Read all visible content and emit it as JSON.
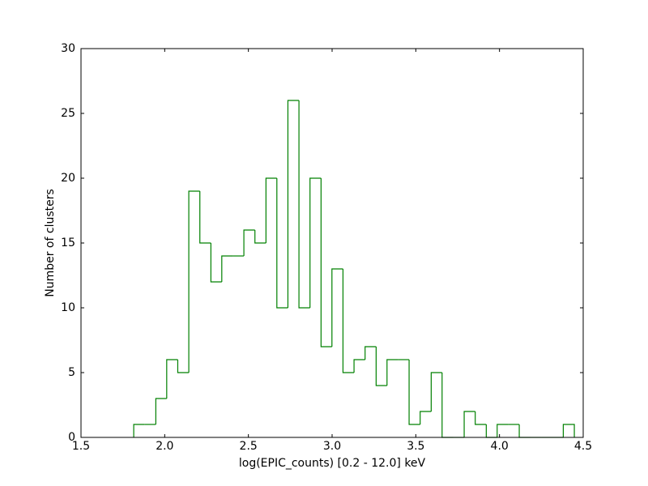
{
  "chart_data": {
    "type": "histogram",
    "xlabel": "log(EPIC_counts) [0.2 - 12.0] keV",
    "ylabel": "Number of clusters",
    "color": "#008000",
    "bins": [
      1.815,
      1.881,
      1.947,
      2.012,
      2.078,
      2.144,
      2.21,
      2.276,
      2.341,
      2.407,
      2.473,
      2.539,
      2.605,
      2.67,
      2.736,
      2.802,
      2.868,
      2.934,
      2.999,
      3.065,
      3.131,
      3.197,
      3.263,
      3.328,
      3.394,
      3.46,
      3.526,
      3.592,
      3.657,
      3.723,
      3.789,
      3.855,
      3.921,
      3.986,
      4.052,
      4.118,
      4.184,
      4.25,
      4.315,
      4.381,
      4.447
    ],
    "counts": [
      1,
      1,
      3,
      6,
      5,
      19,
      15,
      12,
      14,
      14,
      16,
      15,
      20,
      10,
      26,
      10,
      20,
      7,
      13,
      5,
      6,
      7,
      4,
      6,
      6,
      1,
      2,
      5,
      0,
      0,
      2,
      1,
      0,
      1,
      1,
      0,
      0,
      0,
      0,
      1
    ],
    "xlim": [
      1.5,
      4.5
    ],
    "ylim": [
      0,
      30
    ],
    "xticks": [
      1.5,
      {
        "value": 2,
        "label": "2.0"
      },
      2.5,
      {
        "value": 3,
        "label": "3.0"
      },
      3.5,
      {
        "value": 4,
        "label": "4.0"
      },
      4.5
    ],
    "yticks": [
      0,
      5,
      10,
      15,
      20,
      25,
      30
    ]
  }
}
